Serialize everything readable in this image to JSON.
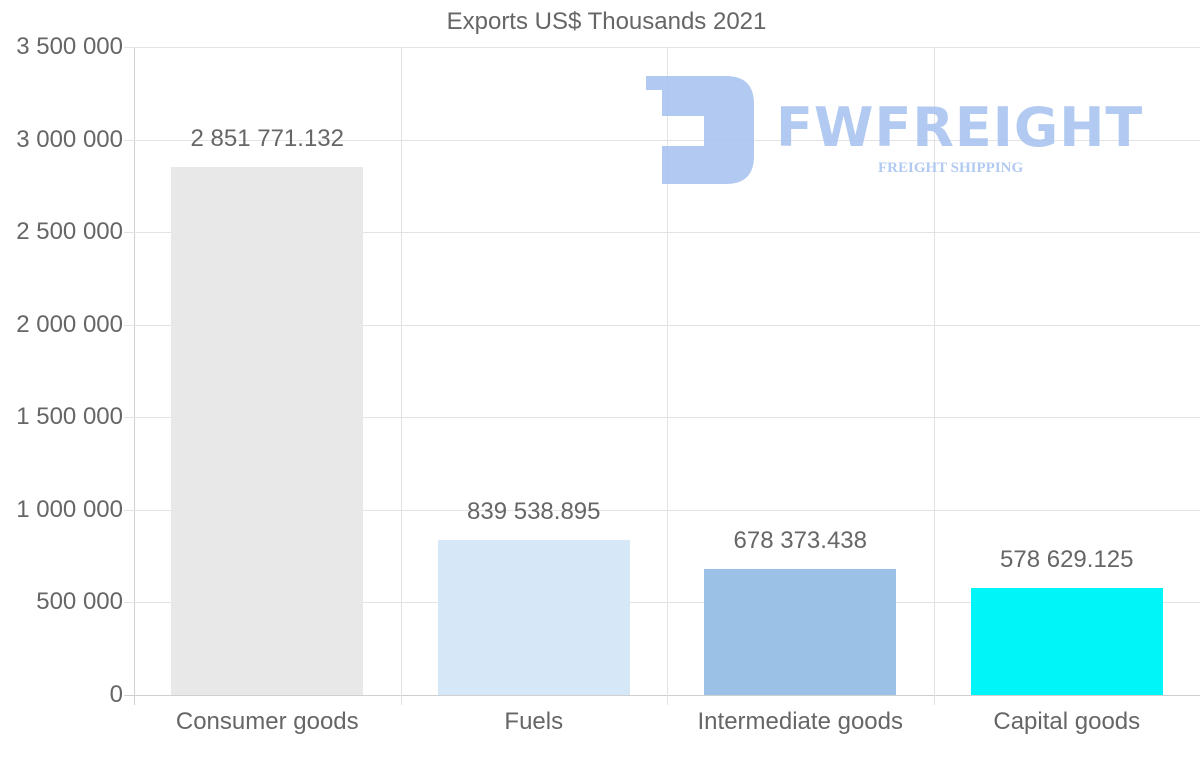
{
  "chart_data": {
    "type": "bar",
    "title": "Exports US$ Thousands 2021",
    "categories": [
      "Consumer goods",
      "Fuels",
      "Intermediate goods",
      "Capital goods"
    ],
    "values": [
      2851771.132,
      839538.895,
      678373.438,
      578629.125
    ],
    "value_labels": [
      "2 851 771.132",
      "839 538.895",
      "678 373.438",
      "578 629.125"
    ],
    "colors": [
      "#e8e8e8",
      "#d6e7f8",
      "#9bc2e6",
      "#00f5f8"
    ],
    "xlabel": "",
    "ylabel": "",
    "ylim": [
      0,
      3500000
    ],
    "yticks": [
      0,
      500000,
      1000000,
      1500000,
      2000000,
      2500000,
      3000000,
      3500000
    ],
    "ytick_labels": [
      "0",
      "500 000",
      "1 000 000",
      "1 500 000",
      "2 000 000",
      "2 500 000",
      "3 000 000",
      "3 500 000"
    ],
    "grid": true,
    "legend": "none"
  },
  "watermark": {
    "brand": "FWFREIGHT",
    "tagline": "FREIGHT SHIPPING",
    "color": "#aac5f0"
  }
}
